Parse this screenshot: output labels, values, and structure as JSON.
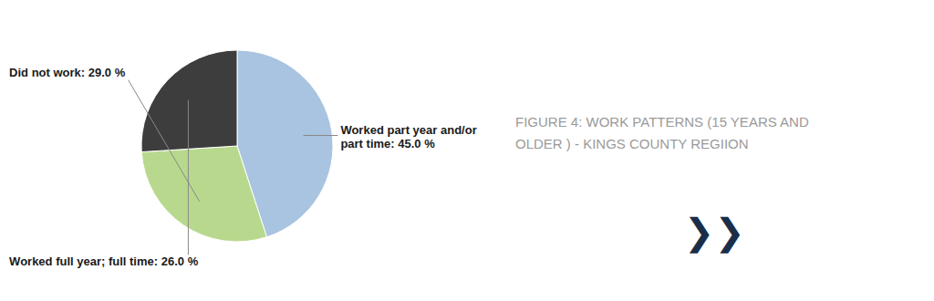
{
  "chart_data": {
    "type": "pie",
    "title": "FIGURE 4: WORK PATTERNS (15 YEARS AND\nOLDER ) - KINGS COUNTY REGIION",
    "values": [
      45.0,
      29.0,
      26.0
    ],
    "colors": [
      "#a8c4e0",
      "#b8d98d",
      "#3d3d3d"
    ],
    "annotations": [
      "Worked part year and/or\npart time: 45.0 %",
      "Did not work: 29.0 %",
      "Worked full year; full time: 26.0 %",
      "❯❯"
    ]
  }
}
